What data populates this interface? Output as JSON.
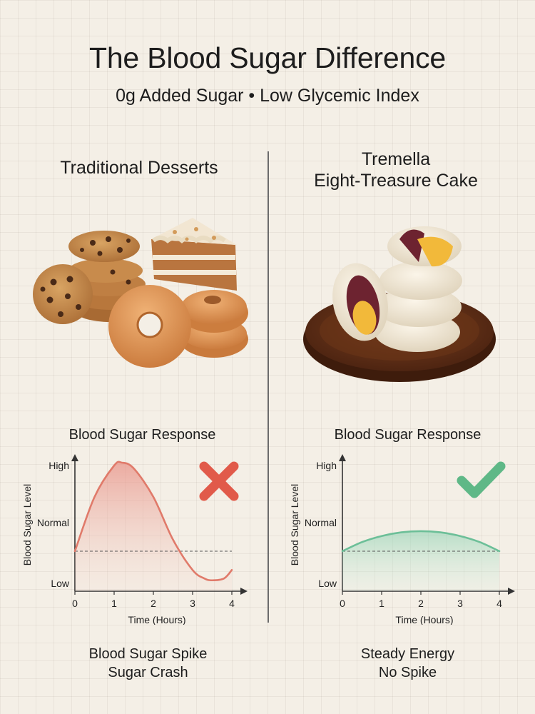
{
  "header": {
    "title": "The Blood Sugar Difference",
    "subtitle": "0g Added Sugar • Low Glycemic Index"
  },
  "left": {
    "title": "Traditional Desserts",
    "chart_title": "Blood Sugar Response",
    "caption_line1": "Blood Sugar Spike",
    "caption_line2": "Sugar Crash",
    "mark": "cross-icon",
    "color": "#e07a6a"
  },
  "right": {
    "title_line1": "Tremella",
    "title_line2": "Eight-Treasure Cake",
    "chart_title": "Blood Sugar Response",
    "caption_line1": "Steady Energy",
    "caption_line2": "No Spike",
    "mark": "check-icon",
    "color": "#6cbf98"
  },
  "chart_data": [
    {
      "type": "area",
      "title": "Blood Sugar Response",
      "xlabel": "Time (Hours)",
      "ylabel": "Blood Sugar Level",
      "x_ticks": [
        "0",
        "1",
        "2",
        "3",
        "4"
      ],
      "y_ticks": [
        "Low",
        "Normal",
        "High"
      ],
      "xlim": [
        0,
        4
      ],
      "ylim": [
        0,
        2
      ],
      "baseline": 0.53,
      "x": [
        0,
        0.5,
        1,
        1.2,
        1.5,
        2,
        2.5,
        3,
        3.3,
        3.5,
        3.8,
        4
      ],
      "values": [
        0.53,
        1.45,
        2.0,
        2.05,
        1.95,
        1.45,
        0.72,
        0.22,
        0.08,
        0.05,
        0.08,
        0.22
      ]
    },
    {
      "type": "area",
      "title": "Blood Sugar Response",
      "xlabel": "Time (Hours)",
      "ylabel": "Blood Sugar Level",
      "x_ticks": [
        "0",
        "1",
        "2",
        "3",
        "4"
      ],
      "y_ticks": [
        "Low",
        "Normal",
        "High"
      ],
      "xlim": [
        0,
        4
      ],
      "ylim": [
        0,
        2
      ],
      "baseline": 0.53,
      "x": [
        0,
        0.5,
        1,
        1.5,
        2,
        2.5,
        3,
        3.5,
        4
      ],
      "values": [
        0.53,
        0.68,
        0.78,
        0.84,
        0.86,
        0.84,
        0.78,
        0.68,
        0.53
      ]
    }
  ]
}
